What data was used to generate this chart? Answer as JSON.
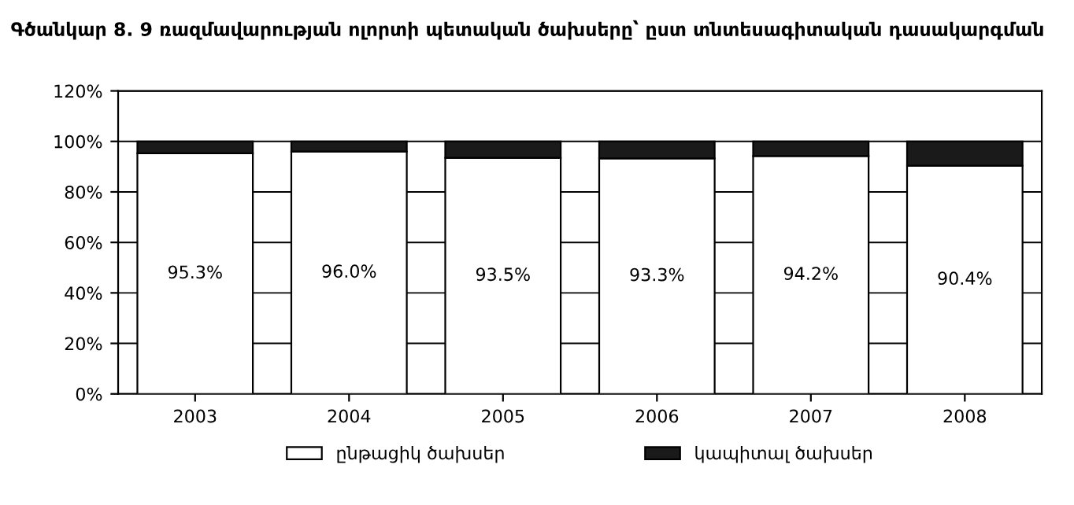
{
  "chart_data": {
    "type": "bar",
    "stacked": true,
    "title": "Գծանկար 8. 9 ռազմավարության ոլորտի պետական ծախսերը՝ ըստ տնտեսագիտական դասակարգման",
    "categories": [
      "2003",
      "2004",
      "2005",
      "2006",
      "2007",
      "2008"
    ],
    "series": [
      {
        "name": "ընթացիկ ծախսեր",
        "color": "#ffffff",
        "values": [
          95.3,
          96.0,
          93.5,
          93.3,
          94.2,
          90.4
        ],
        "value_labels": [
          "95.3%",
          "96.0%",
          "93.5%",
          "93.3%",
          "94.2%",
          "90.4%"
        ]
      },
      {
        "name": "կապիտալ ծախսեր",
        "color": "#1a1a1a",
        "values": [
          4.7,
          4.0,
          6.5,
          6.7,
          5.8,
          9.6
        ]
      }
    ],
    "ylim": [
      0,
      120
    ],
    "yticks": [
      {
        "value": 0,
        "label": "0%"
      },
      {
        "value": 20,
        "label": "20%"
      },
      {
        "value": 40,
        "label": "40%"
      },
      {
        "value": 60,
        "label": "60%"
      },
      {
        "value": 80,
        "label": "80%"
      },
      {
        "value": 100,
        "label": "100%"
      },
      {
        "value": 120,
        "label": "120%"
      }
    ],
    "grid": "y",
    "legend": "bottom"
  }
}
